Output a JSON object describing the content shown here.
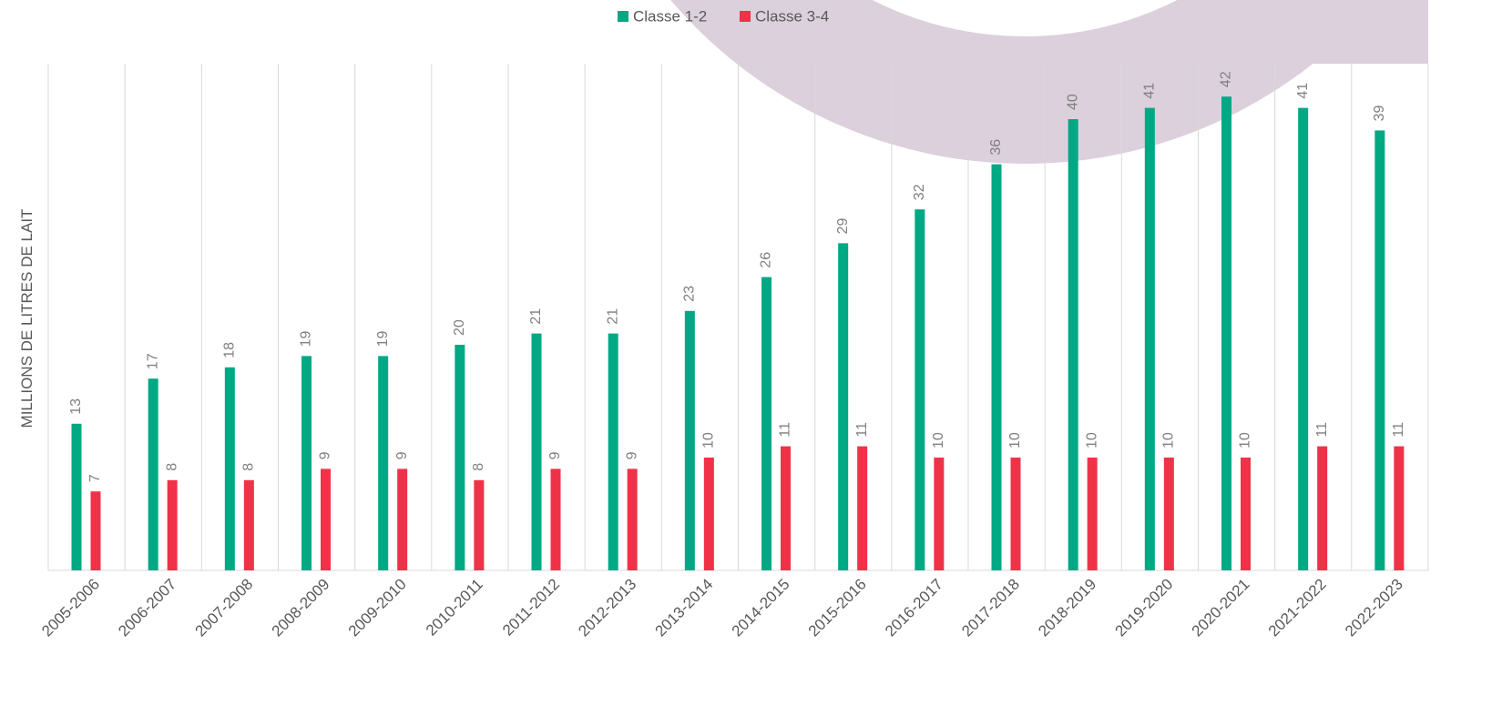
{
  "chart_data": {
    "type": "bar",
    "y_axis_label": "MILLIONS DE LITRES DE LAIT",
    "categories": [
      "2005-2006",
      "2006-2007",
      "2007-2008",
      "2008-2009",
      "2009-2010",
      "2010-2011",
      "2011-2012",
      "2012-2013",
      "2013-2014",
      "2014-2015",
      "2015-2016",
      "2016-2017",
      "2017-2018",
      "2018-2019",
      "2019-2020",
      "2020-2021",
      "2021-2022",
      "2022-2023"
    ],
    "series": [
      {
        "name": "Classe 1-2",
        "color": "#00a884",
        "values": [
          13,
          17,
          18,
          19,
          19,
          20,
          21,
          21,
          23,
          26,
          29,
          32,
          36,
          40,
          41,
          42,
          41,
          39
        ]
      },
      {
        "name": "Classe 3-4",
        "color": "#f03248",
        "values": [
          7,
          8,
          8,
          9,
          9,
          8,
          9,
          9,
          10,
          11,
          11,
          10,
          10,
          10,
          10,
          10,
          11,
          11
        ]
      }
    ],
    "legend": "top",
    "grid": true
  }
}
